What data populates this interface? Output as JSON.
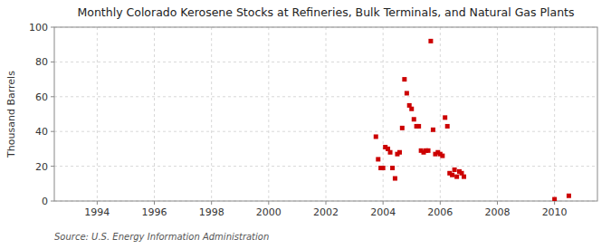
{
  "chart_data": {
    "type": "scatter",
    "title": "Monthly Colorado Kerosene Stocks at Refineries, Bulk Terminals, and Natural Gas Plants",
    "ylabel": "Thousand Barrels",
    "annotations": [
      "Source: U.S. Energy Information Administration"
    ],
    "x": [
      2003.75,
      2003.83,
      2003.92,
      2004.0,
      2004.08,
      2004.17,
      2004.25,
      2004.33,
      2004.42,
      2004.5,
      2004.58,
      2004.67,
      2004.75,
      2004.83,
      2004.92,
      2005.0,
      2005.08,
      2005.17,
      2005.25,
      2005.33,
      2005.42,
      2005.5,
      2005.58,
      2005.67,
      2005.75,
      2005.83,
      2005.92,
      2006.0,
      2006.08,
      2006.17,
      2006.25,
      2006.33,
      2006.42,
      2006.5,
      2006.58,
      2006.67,
      2006.75,
      2006.83,
      2010.0,
      2010.5
    ],
    "values": [
      37,
      24,
      19,
      19,
      31,
      30,
      28,
      19,
      13,
      27,
      28,
      42,
      70,
      62,
      55,
      53,
      47,
      43,
      43,
      29,
      28,
      29,
      29,
      92,
      41,
      27,
      28,
      27,
      26,
      48,
      43,
      16,
      15,
      18,
      14,
      17,
      16,
      14,
      1,
      3
    ],
    "color": "#cc0000",
    "marker": "square",
    "xlim": [
      1992.5,
      2011.5
    ],
    "ylim": [
      0,
      100
    ],
    "xticks": [
      1994,
      1996,
      1998,
      2000,
      2002,
      2004,
      2006,
      2008,
      2010
    ],
    "yticks": [
      0,
      20,
      40,
      60,
      80,
      100
    ],
    "grid": true
  }
}
